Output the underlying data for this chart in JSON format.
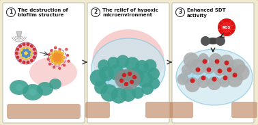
{
  "background_color": "#f0ead0",
  "panel_border": "#ccccaa",
  "title1": "The destruction of\nbiofilm structure",
  "title2": "The relief of hypoxic\nmicroenvironment",
  "title3": "Enhanced SDT\nactivity",
  "arrow_color": "#333333",
  "teal_dark": "#3a9e8e",
  "teal_mid": "#4ab0a0",
  "blue_light": "#80c8e8",
  "blue_pale": "#b0ddf0",
  "gray_dark": "#888888",
  "gray_med": "#aaaaaa",
  "gray_light": "#cccccc",
  "pink_glow": "#f0a0a0",
  "red_dot": "#cc2222",
  "brown_strip": "#c09070",
  "purple_ring": "#aa66aa",
  "yellow_inner": "#f5d840",
  "orange_burst": "#f09030",
  "ros_red": "#dd1111",
  "sdt_dark": "#444444",
  "white": "#ffffff"
}
